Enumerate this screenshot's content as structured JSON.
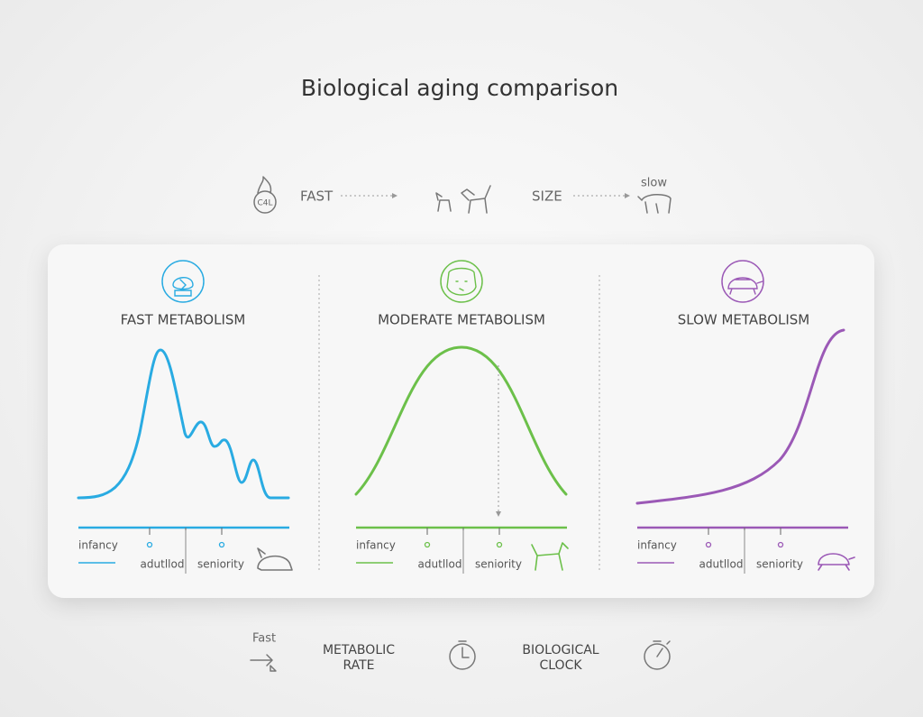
{
  "title": "Biological aging comparison",
  "legend": {
    "icon_text": "C4L",
    "fast": "FAST",
    "size": "SIZE",
    "slow": "slow"
  },
  "panels": [
    {
      "title": "FAST METABOLISM",
      "labels": [
        "infancy",
        "adutllod",
        "seniority"
      ]
    },
    {
      "title": "MODERATE METABOLISM",
      "labels": [
        "infancy",
        "adutllod",
        "seniority"
      ]
    },
    {
      "title": "SLOW METABOLISM",
      "labels": [
        "infancy",
        "adutllod",
        "seniority"
      ]
    }
  ],
  "footer": {
    "fast": "Fast",
    "metabolic_rate": [
      "METABOLIC",
      "RATE"
    ],
    "biological_clock": [
      "BIOLOGICAL",
      "CLOCK"
    ]
  }
}
